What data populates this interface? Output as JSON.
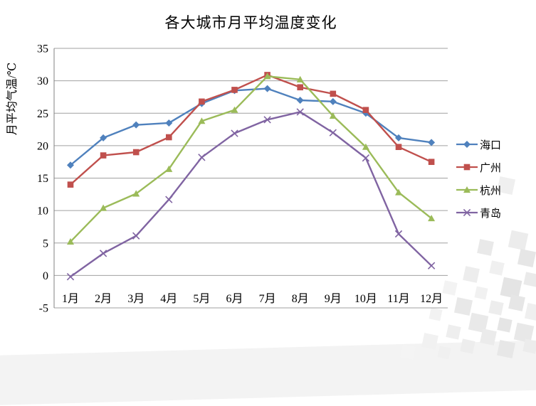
{
  "chart_data": {
    "type": "line",
    "title": "各大城市月平均温度变化",
    "ylabel": "月平均气温/℃",
    "xlabel": "",
    "categories": [
      "1月",
      "2月",
      "3月",
      "4月",
      "5月",
      "6月",
      "7月",
      "8月",
      "9月",
      "10月",
      "11月",
      "12月"
    ],
    "ylim": [
      -5,
      35
    ],
    "yticks": [
      35,
      30,
      25,
      20,
      15,
      10,
      5,
      0,
      -5
    ],
    "grid": true,
    "legend_position": "right",
    "gridline_color": "#a0a0a0",
    "axis_color": "#808080",
    "text_color": "#000000",
    "series": [
      {
        "id": "haikou",
        "name": "海口",
        "color": "#4F81BD",
        "marker": "diamond",
        "values": [
          17,
          21.2,
          23.2,
          23.5,
          26.5,
          28.5,
          28.8,
          27,
          26.8,
          25,
          21.2,
          20.5
        ]
      },
      {
        "id": "guangzhou",
        "name": "广州",
        "color": "#C0504D",
        "marker": "square",
        "values": [
          14,
          18.5,
          19,
          21.3,
          26.8,
          28.6,
          30.9,
          29,
          28,
          25.5,
          19.8,
          17.5
        ]
      },
      {
        "id": "hangzhou",
        "name": "杭州",
        "color": "#9BBB59",
        "marker": "triangle",
        "values": [
          5.2,
          10.4,
          12.6,
          16.4,
          23.8,
          25.5,
          30.7,
          30.2,
          24.6,
          19.8,
          12.8,
          8.8
        ]
      },
      {
        "id": "qingdao",
        "name": "青岛",
        "color": "#8064A2",
        "marker": "x",
        "values": [
          -0.2,
          3.4,
          6.1,
          11.7,
          18.2,
          21.9,
          24,
          25.2,
          22,
          18.1,
          6.4,
          1.5
        ]
      }
    ]
  }
}
